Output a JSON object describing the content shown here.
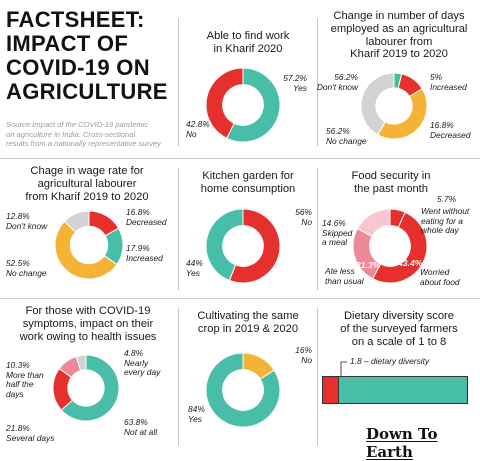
{
  "header": {
    "title_lines": [
      "FACTSHEET:",
      "IMPACT OF",
      "COVID-19 ON",
      "AGRICULTURE"
    ],
    "source_lines": [
      "Source:Impact of the COVID-19 pandemic",
      "on agriculture  in India: Cross-sectional",
      "results from a nationally representative survey"
    ]
  },
  "colors": {
    "teal": "#48bda7",
    "red": "#e5302d",
    "yellow": "#f5b335",
    "gray": "#d3d3d3",
    "pink": "#ec8898",
    "lightpink": "#f9c6cf"
  },
  "chart_data": [
    {
      "id": "work",
      "type": "pie",
      "donut": true,
      "title": [
        "Able to find work",
        "in Kharif 2020"
      ],
      "slices": [
        {
          "label": "Yes",
          "value": 57.2,
          "color": "#48bda7"
        },
        {
          "label": "No",
          "value": 42.8,
          "color": "#e5302d"
        }
      ],
      "labels": [
        {
          "value": "57.2%",
          "text": "Yes"
        },
        {
          "value": "42.8%",
          "text": "No"
        }
      ]
    },
    {
      "id": "days",
      "type": "pie",
      "donut": true,
      "title": [
        "Change in number of days",
        "employed as an agricultural",
        "labourer from",
        "Kharif 2019 to 2020"
      ],
      "slices": [
        {
          "label": "Increased",
          "value": 5,
          "color": "#48bda7"
        },
        {
          "label": "Decreased",
          "value": 16.8,
          "color": "#e5302d"
        },
        {
          "label": "No change",
          "value": 56.2,
          "color": "#f5b335"
        },
        {
          "label": "Don't know",
          "value": 56.2,
          "color": "#d3d3d3"
        }
      ],
      "labels": [
        {
          "value": "5%",
          "text": "Increased"
        },
        {
          "value": "16.8%",
          "text": "Decreased"
        },
        {
          "value": "56.2%",
          "text": "No change"
        },
        {
          "value": "56.2%",
          "text": "Don't know"
        }
      ]
    },
    {
      "id": "wage",
      "type": "pie",
      "donut": true,
      "title": [
        "Chage in wage rate for",
        "agricultural labourer",
        "from Kharif 2019 to 2020"
      ],
      "slices": [
        {
          "label": "Decreased",
          "value": 16.8,
          "color": "#e5302d"
        },
        {
          "label": "Increased",
          "value": 17.9,
          "color": "#48bda7"
        },
        {
          "label": "No change",
          "value": 52.5,
          "color": "#f5b335"
        },
        {
          "label": "Don't know",
          "value": 12.8,
          "color": "#d3d3d3"
        }
      ],
      "labels": [
        {
          "value": "16.8%",
          "text": "Decreased"
        },
        {
          "value": "17.9%",
          "text": "Increased"
        },
        {
          "value": "52.5%",
          "text": "No change"
        },
        {
          "value": "12.8%",
          "text": "Don't know"
        }
      ]
    },
    {
      "id": "garden",
      "type": "pie",
      "donut": true,
      "title": [
        "Kitchen garden for",
        "home consumption"
      ],
      "slices": [
        {
          "label": "No",
          "value": 56,
          "color": "#e5302d"
        },
        {
          "label": "Yes",
          "value": 44,
          "color": "#48bda7"
        }
      ],
      "labels": [
        {
          "value": "56%",
          "text": "No"
        },
        {
          "value": "44%",
          "text": "Yes"
        }
      ]
    },
    {
      "id": "food",
      "type": "pie",
      "donut": true,
      "title": [
        "Food security in",
        "the past month"
      ],
      "slices": [
        {
          "label": "Went without eating for a whole day",
          "value": 5.7,
          "color": "#e5302d"
        },
        {
          "label": "Worried about food",
          "value": 43.4,
          "color": "#e5302d"
        },
        {
          "label": "Ate less than usual",
          "value": 21.3,
          "color": "#ec8898"
        },
        {
          "label": "Skipped a meal",
          "value": 14.6,
          "color": "#f9c6cf"
        }
      ],
      "labels": [
        {
          "value": "5.7%",
          "text": "Went without eating for a whole day"
        },
        {
          "value": "43.4%",
          "text": "Worried about food"
        },
        {
          "value": "21.3%",
          "text": "Ate less than usual"
        },
        {
          "value": "14.6%",
          "text": "Skipped a meal"
        }
      ],
      "label_lines": {
        "went": [
          "Went without",
          "eating for a",
          "whole day"
        ],
        "worried": [
          "Worried",
          "about food"
        ],
        "ate": [
          "Ate less",
          "than usual"
        ],
        "skipped": [
          "Skipped",
          "a meal"
        ]
      }
    },
    {
      "id": "health",
      "type": "pie",
      "donut": true,
      "title": [
        "For those with COVID-19",
        "symptoms, impact on their",
        "work owing to health issues"
      ],
      "slices": [
        {
          "label": "Not at all",
          "value": 63.8,
          "color": "#48bda7"
        },
        {
          "label": "Several days",
          "value": 21.8,
          "color": "#e5302d"
        },
        {
          "label": "More than half the days",
          "value": 10.3,
          "color": "#ec8898"
        },
        {
          "label": "Nearly every day",
          "value": 4.8,
          "color": "#d3d3d3"
        }
      ],
      "labels": [
        {
          "value": "63.8%",
          "text": "Not at all"
        },
        {
          "value": "21.8%",
          "text": "Several days"
        },
        {
          "value": "10.3%",
          "text": "More than half the days"
        },
        {
          "value": "4.8%",
          "text": "Nearly every day"
        }
      ],
      "label_lines": {
        "more": [
          "More than",
          "half the",
          "days"
        ],
        "nearly": [
          "Nearly",
          "every day"
        ]
      }
    },
    {
      "id": "crop",
      "type": "pie",
      "donut": true,
      "title": [
        "Cultivating the same",
        "crop in 2019 & 2020"
      ],
      "slices": [
        {
          "label": "No",
          "value": 16,
          "color": "#f5b335"
        },
        {
          "label": "Yes",
          "value": 84,
          "color": "#48bda7"
        }
      ],
      "labels": [
        {
          "value": "16%",
          "text": "No"
        },
        {
          "value": "84%",
          "text": "Yes"
        }
      ]
    },
    {
      "id": "diversity",
      "type": "bar",
      "title": [
        "Dietary diversity score",
        "of the surveyed farmers",
        "on a scale of 1 to 8"
      ],
      "value": 1.8,
      "scale_min": 1,
      "scale_max": 8,
      "label": "1.8 – dietary diversity"
    }
  ],
  "brand": "Down To Earth"
}
